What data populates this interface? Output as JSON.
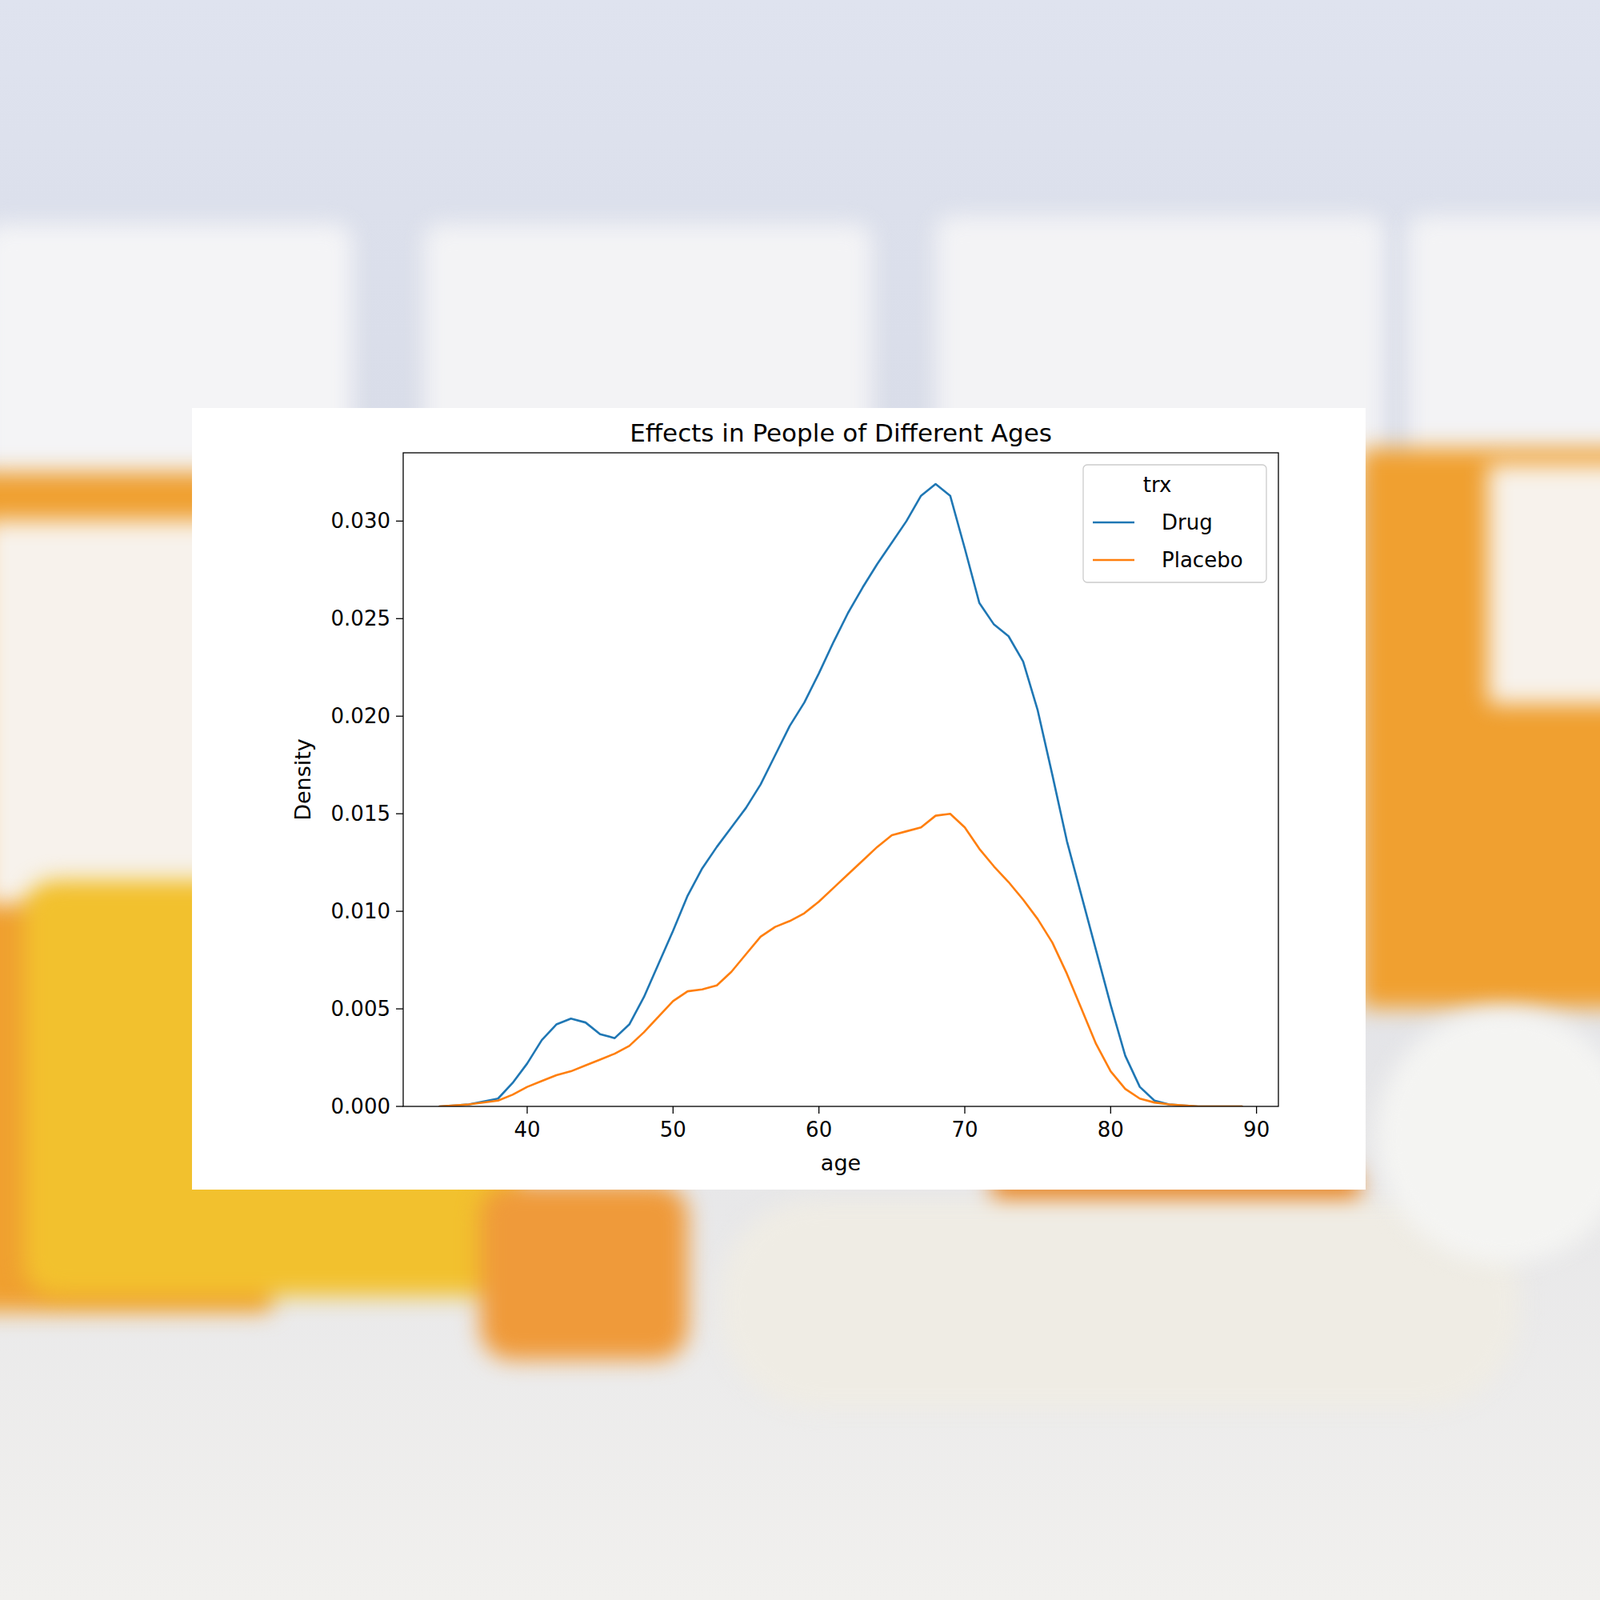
{
  "chart_data": {
    "type": "line",
    "title": "Effects in People of Different Ages",
    "x_label": "age",
    "y_label": "Density",
    "legend_title": "trx",
    "legend": "upper right",
    "x": [
      34,
      36,
      38,
      39,
      40,
      41,
      42,
      43,
      44,
      45,
      46,
      47,
      48,
      49,
      50,
      51,
      52,
      53,
      54,
      55,
      56,
      57,
      58,
      59,
      60,
      61,
      62,
      63,
      64,
      65,
      66,
      67,
      68,
      69,
      70,
      71,
      72,
      73,
      74,
      75,
      76,
      77,
      78,
      79,
      80,
      81,
      82,
      83,
      84,
      86,
      89
    ],
    "series": [
      {
        "name": "Drug",
        "color": "#1f77b4",
        "values": [
          0,
          0.0001,
          0.0004,
          0.0012,
          0.0022,
          0.0034,
          0.0042,
          0.0045,
          0.0043,
          0.0037,
          0.0035,
          0.0042,
          0.0056,
          0.0073,
          0.009,
          0.0108,
          0.0122,
          0.0133,
          0.0143,
          0.0153,
          0.0165,
          0.018,
          0.0195,
          0.0207,
          0.0222,
          0.0238,
          0.0253,
          0.0266,
          0.0278,
          0.0289,
          0.03,
          0.0313,
          0.0319,
          0.0313,
          0.0286,
          0.0258,
          0.0247,
          0.0241,
          0.0228,
          0.0203,
          0.017,
          0.0136,
          0.0108,
          0.008,
          0.0052,
          0.0026,
          0.001,
          0.0003,
          0.0001,
          0,
          0
        ]
      },
      {
        "name": "Placebo",
        "color": "#ff7f0e",
        "values": [
          0,
          0.0001,
          0.0003,
          0.0006,
          0.001,
          0.0013,
          0.0016,
          0.0018,
          0.0021,
          0.0024,
          0.0027,
          0.0031,
          0.0038,
          0.0046,
          0.0054,
          0.0059,
          0.006,
          0.0062,
          0.0069,
          0.0078,
          0.0087,
          0.0092,
          0.0095,
          0.0099,
          0.0105,
          0.0112,
          0.0119,
          0.0126,
          0.0133,
          0.0139,
          0.0141,
          0.0143,
          0.0149,
          0.015,
          0.0143,
          0.0132,
          0.0123,
          0.0115,
          0.0106,
          0.0096,
          0.0084,
          0.0068,
          0.005,
          0.0032,
          0.0018,
          0.0009,
          0.0004,
          0.0002,
          0.0001,
          0,
          0
        ]
      }
    ],
    "xlim": [
      31.5,
      91.5
    ],
    "xticks": [
      40,
      50,
      60,
      70,
      80,
      90
    ],
    "ylim": [
      0,
      0.0335
    ],
    "yticks": [
      {
        "value": 0,
        "label": "0.000"
      },
      {
        "value": 0.005,
        "label": "0.005"
      },
      {
        "value": 0.01,
        "label": "0.010"
      },
      {
        "value": 0.015,
        "label": "0.015"
      },
      {
        "value": 0.02,
        "label": "0.020"
      },
      {
        "value": 0.025,
        "label": "0.025"
      },
      {
        "value": 0.03,
        "label": "0.030"
      }
    ],
    "grid": false
  }
}
